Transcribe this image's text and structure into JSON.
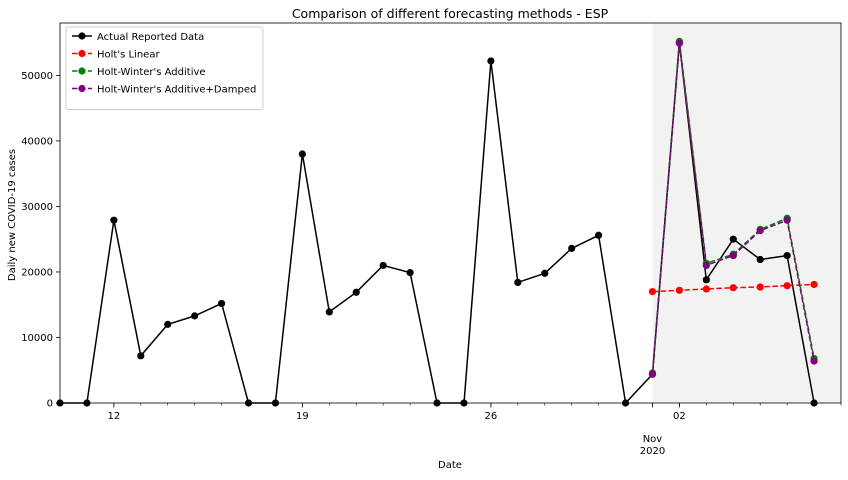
{
  "chart_data": {
    "type": "line",
    "title": "Comparison of different forecasting methods - ESP",
    "xlabel": "Date",
    "ylabel": "Daily new COVID-19 cases",
    "ylim": [
      0,
      58000
    ],
    "xlim": [
      "2020-10-10",
      "2020-11-08"
    ],
    "y_ticks": [
      0,
      10000,
      20000,
      30000,
      40000,
      50000
    ],
    "x_ticks": [
      {
        "date": "2020-10-12",
        "label": "12"
      },
      {
        "date": "2020-10-19",
        "label": "19"
      },
      {
        "date": "2020-10-26",
        "label": "26"
      },
      {
        "date": "2020-11-01",
        "label": "Nov",
        "sublabel": "2020"
      },
      {
        "date": "2020-11-02",
        "label": "02"
      }
    ],
    "grid": false,
    "legend_position": "top-left",
    "forecast_region": {
      "start": "2020-11-01",
      "end": "2020-11-08",
      "color": "#f2f2f2"
    },
    "series": [
      {
        "name": "Actual Reported Data",
        "color": "#000000",
        "dashed": false,
        "x": [
          "2020-10-10",
          "2020-10-11",
          "2020-10-12",
          "2020-10-13",
          "2020-10-14",
          "2020-10-15",
          "2020-10-16",
          "2020-10-17",
          "2020-10-18",
          "2020-10-19",
          "2020-10-20",
          "2020-10-21",
          "2020-10-22",
          "2020-10-23",
          "2020-10-24",
          "2020-10-25",
          "2020-10-26",
          "2020-10-27",
          "2020-10-28",
          "2020-10-29",
          "2020-10-30",
          "2020-10-31",
          "2020-11-01",
          "2020-11-02",
          "2020-11-03",
          "2020-11-04",
          "2020-11-05",
          "2020-11-06",
          "2020-11-07"
        ],
        "y": [
          0,
          0,
          27900,
          7200,
          12000,
          13300,
          15200,
          0,
          0,
          38000,
          13900,
          16900,
          21000,
          19900,
          0,
          0,
          52200,
          18400,
          19800,
          23600,
          25600,
          0,
          4400,
          55000,
          18800,
          25000,
          21900,
          22500,
          0
        ]
      },
      {
        "name": "Holt's Linear",
        "color": "#ff0000",
        "dashed": true,
        "x": [
          "2020-11-01",
          "2020-11-02",
          "2020-11-03",
          "2020-11-04",
          "2020-11-05",
          "2020-11-06",
          "2020-11-07"
        ],
        "y": [
          17000,
          17200,
          17400,
          17600,
          17700,
          17900,
          18100
        ]
      },
      {
        "name": "Holt-Winter's Additive",
        "color": "#008000",
        "dashed": true,
        "x": [
          "2020-11-01",
          "2020-11-02",
          "2020-11-03",
          "2020-11-04",
          "2020-11-05",
          "2020-11-06",
          "2020-11-07"
        ],
        "y": [
          4600,
          55200,
          21300,
          22700,
          26500,
          28200,
          6800
        ]
      },
      {
        "name": "Holt-Winter's Additive+Damped",
        "color": "#800080",
        "dashed": true,
        "x": [
          "2020-11-01",
          "2020-11-02",
          "2020-11-03",
          "2020-11-04",
          "2020-11-05",
          "2020-11-06",
          "2020-11-07"
        ],
        "y": [
          4400,
          54900,
          21000,
          22500,
          26300,
          27900,
          6400
        ]
      }
    ]
  }
}
